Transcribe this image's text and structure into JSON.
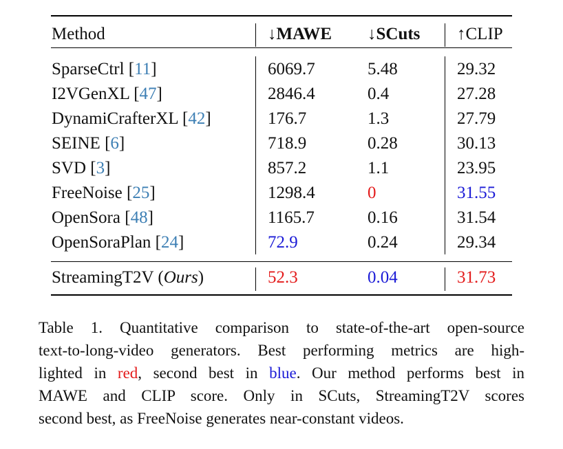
{
  "colors": {
    "best": "#e31a1a",
    "second": "#1a1ad6",
    "citation": "#3d7fb4"
  },
  "table": {
    "headers": {
      "method": "Method",
      "mawe": "↓MAWE",
      "scuts": "↓SCuts",
      "clip": "↑CLIP"
    },
    "rows": [
      {
        "name": "SparseCtrl",
        "cite": "11",
        "mawe": "6069.7",
        "scuts": "5.48",
        "clip": "29.32"
      },
      {
        "name": "I2VGenXL",
        "cite": "47",
        "mawe": "2846.4",
        "scuts": "0.4",
        "clip": "27.28"
      },
      {
        "name": "DynamiCrafterXL",
        "cite": "42",
        "mawe": "176.7",
        "scuts": "1.3",
        "clip": "27.79"
      },
      {
        "name": "SEINE",
        "cite": "6",
        "mawe": "718.9",
        "scuts": "0.28",
        "clip": "30.13"
      },
      {
        "name": "SVD",
        "cite": "3",
        "mawe": "857.2",
        "scuts": "1.1",
        "clip": "23.95"
      },
      {
        "name": "FreeNoise",
        "cite": "25",
        "mawe": "1298.4",
        "scuts": "0",
        "clip": "31.55"
      },
      {
        "name": "OpenSora",
        "cite": "48",
        "mawe": "1165.7",
        "scuts": "0.16",
        "clip": "31.54"
      },
      {
        "name": "OpenSoraPlan",
        "cite": "24",
        "mawe": "72.9",
        "scuts": "0.24",
        "clip": "29.34"
      }
    ],
    "ours": {
      "name": "StreamingT2V",
      "tag": "Ours",
      "mawe": "52.3",
      "scuts": "0.04",
      "clip": "31.73"
    }
  },
  "caption": {
    "line1": "Table 1.  Quantitative comparison to state-of-the-art open-source",
    "line2": "text-to-long-video generators.  Best performing metrics are high-",
    "line3_pre": "lighted in ",
    "line3_red": "red",
    "line3_mid": ", second best in ",
    "line3_blue": "blue",
    "line3_post": ".  Our method performs best in",
    "line4": "MAWE and CLIP score.  Only in SCuts, StreamingT2V scores",
    "line5": "second best, as FreeNoise generates near-constant videos."
  }
}
